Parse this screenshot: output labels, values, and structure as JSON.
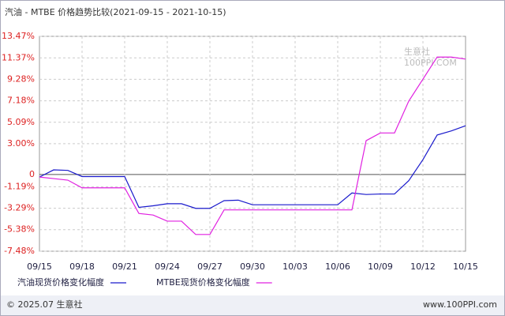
{
  "chart_data": {
    "type": "line",
    "title": "汽油 - MTBE 价格趋势比较(2021-09-15 - 2021-10-15)",
    "categories": [
      "09/15",
      null,
      null,
      "09/18",
      null,
      null,
      "09/21",
      null,
      null,
      "09/24",
      null,
      null,
      "09/27",
      null,
      null,
      "09/30",
      null,
      null,
      "10/03",
      null,
      null,
      "10/06",
      null,
      null,
      "10/09",
      null,
      null,
      "10/12",
      null,
      null,
      "10/15"
    ],
    "series": [
      {
        "name": "汽油现货价格变化幅度",
        "color": "#1a1acc",
        "values": [
          -0.25,
          0.45,
          0.4,
          -0.2,
          -0.2,
          -0.2,
          -0.2,
          -3.2,
          -3.05,
          -2.85,
          -2.85,
          -3.3,
          -3.3,
          -2.55,
          -2.5,
          -2.95,
          -2.95,
          -2.95,
          -2.95,
          -2.95,
          -2.95,
          -2.95,
          -1.8,
          -1.95,
          -1.9,
          -1.9,
          -0.6,
          1.45,
          3.85,
          4.25,
          4.75
        ]
      },
      {
        "name": "MTBE现货价格变化幅度",
        "color": "#e020e0",
        "values": [
          -0.25,
          -0.4,
          -0.55,
          -1.3,
          -1.3,
          -1.3,
          -1.3,
          -3.8,
          -3.95,
          -4.55,
          -4.55,
          -5.85,
          -5.85,
          -3.45,
          -3.45,
          -3.45,
          -3.45,
          -3.45,
          -3.45,
          -3.45,
          -3.45,
          -3.45,
          -3.45,
          3.3,
          4.05,
          4.05,
          7.15,
          9.3,
          11.45,
          11.45,
          11.25
        ]
      }
    ],
    "ylim": [
      -7.48,
      13.47
    ],
    "yticks": [
      {
        "value": 13.47,
        "label": "13.47%"
      },
      {
        "value": 11.37,
        "label": "11.37%"
      },
      {
        "value": 9.28,
        "label": "9.28%"
      },
      {
        "value": 7.18,
        "label": "7.18%"
      },
      {
        "value": 5.09,
        "label": "5.09%"
      },
      {
        "value": 3.0,
        "label": "3.00%"
      },
      0,
      {
        "value": -1.19,
        "label": "-1.19%"
      },
      {
        "value": -3.29,
        "label": "-3.29%"
      },
      {
        "value": -5.38,
        "label": "-5.38%"
      },
      {
        "value": -7.48,
        "label": "-7.48%"
      }
    ],
    "grid": true,
    "watermark": [
      "生意社",
      "100PPI.COM"
    ],
    "footer": {
      "left": "© 2025.07 生意社",
      "right": "www.100PPI.com"
    }
  }
}
